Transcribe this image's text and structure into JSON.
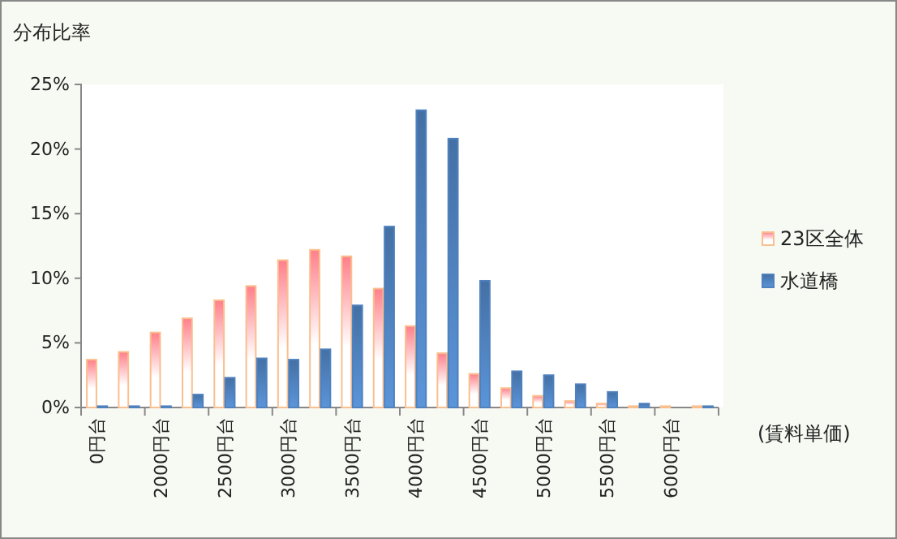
{
  "chart_data": {
    "type": "bar",
    "ylabel": "分布比率",
    "xlabel": "(賃料単価)",
    "categories": [
      "0円台",
      null,
      "2000円台",
      null,
      "2500円台",
      null,
      "3000円台",
      null,
      "3500円台",
      null,
      "4000円台",
      null,
      "4500円台",
      null,
      "5000円台",
      null,
      "5500円台",
      null,
      "6000円台",
      null
    ],
    "series": [
      {
        "name": "23区全体",
        "color": "#fabf8f",
        "values": [
          3.7,
          4.3,
          5.8,
          6.9,
          8.3,
          9.4,
          11.4,
          12.2,
          11.7,
          9.2,
          6.3,
          4.2,
          2.6,
          1.5,
          0.9,
          0.5,
          0.3,
          0.1,
          0.1,
          0.1
        ]
      },
      {
        "name": "水道橋",
        "color": "#4f81bd",
        "values": [
          0.1,
          0.1,
          0.1,
          1.0,
          2.3,
          3.8,
          3.7,
          4.5,
          7.9,
          14.0,
          23.0,
          20.8,
          9.8,
          2.8,
          2.5,
          1.8,
          1.2,
          0.3,
          0,
          0.1
        ]
      }
    ],
    "ylim": [
      0,
      25
    ],
    "yticks": [
      {
        "value": 0,
        "label": "0%"
      },
      {
        "value": 5,
        "label": "5%"
      },
      {
        "value": 10,
        "label": "10%"
      },
      {
        "value": 15,
        "label": "15%"
      },
      {
        "value": 20,
        "label": "20%"
      },
      {
        "value": 25,
        "label": "25%"
      }
    ],
    "grid": false,
    "legend": "right"
  }
}
